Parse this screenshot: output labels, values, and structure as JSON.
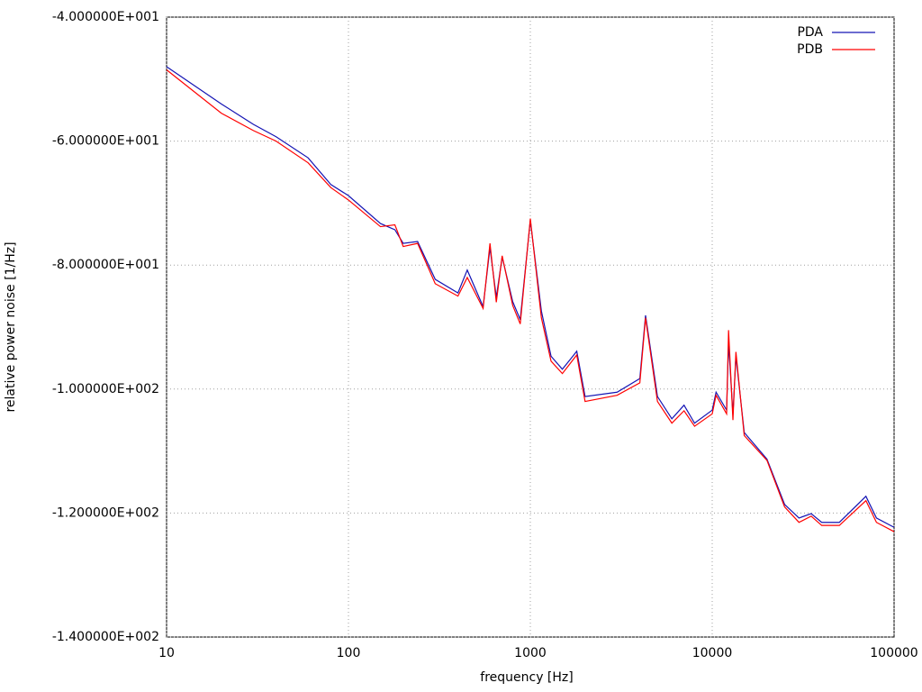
{
  "chart_data": {
    "type": "line",
    "xlabel": "frequency [Hz]",
    "ylabel": "relative power noise [1/Hz]",
    "xscale": "log",
    "grid": true,
    "legend": "upper right",
    "xlim": [
      10,
      100000
    ],
    "xticks": [
      10,
      100,
      1000,
      10000,
      100000
    ],
    "ylim": [
      -140,
      -40
    ],
    "yticks": [
      {
        "value": -140,
        "label": "-1.400000E+002"
      },
      {
        "value": -120,
        "label": "-1.200000E+002"
      },
      {
        "value": -100,
        "label": "-1.000000E+002"
      },
      {
        "value": -80,
        "label": "-8.000000E+001"
      },
      {
        "value": -60,
        "label": "-6.000000E+001"
      },
      {
        "value": -40,
        "label": "-4.000000E+001"
      }
    ],
    "x": [
      10,
      20,
      30,
      40,
      60,
      80,
      100,
      150,
      180,
      200,
      240,
      300,
      400,
      450,
      550,
      600,
      650,
      700,
      800,
      880,
      1000,
      1150,
      1300,
      1500,
      1800,
      2000,
      3000,
      4000,
      4300,
      5000,
      6000,
      7000,
      8000,
      10000,
      10500,
      12000,
      12300,
      13000,
      13500,
      15000,
      20000,
      25000,
      30000,
      35000,
      40000,
      50000,
      70000,
      80000,
      100000
    ],
    "series": [
      {
        "name": "PDA",
        "color": "#1414b4",
        "values": [
          -48,
          -54,
          -57.3,
          -59.3,
          -62.7,
          -67,
          -68.8,
          -73.3,
          -74.3,
          -76.5,
          -76.2,
          -82.3,
          -84.5,
          -80.8,
          -86.7,
          -77.2,
          -85.2,
          -78.7,
          -85.9,
          -88.8,
          -72.8,
          -87.4,
          -94.7,
          -96.8,
          -93.9,
          -101.2,
          -100.5,
          -98.3,
          -88.1,
          -101.2,
          -104.8,
          -102.6,
          -105.5,
          -103.4,
          -100.5,
          -103.4,
          -92.5,
          -104.1,
          -94.7,
          -107,
          -111.3,
          -118.6,
          -120.8,
          -120.1,
          -121.5,
          -121.5,
          -117.3,
          -120.8,
          -122.3
        ]
      },
      {
        "name": "PDB",
        "color": "#ff0000",
        "values": [
          -48.5,
          -55.5,
          -58.3,
          -60,
          -63.5,
          -67.5,
          -69.5,
          -73.8,
          -73.5,
          -77,
          -76.5,
          -83,
          -85,
          -82,
          -87,
          -76.5,
          -86,
          -78.5,
          -86.5,
          -89.5,
          -72.5,
          -88.5,
          -95.5,
          -97.5,
          -94.5,
          -102,
          -101,
          -99,
          -88.5,
          -102,
          -105.5,
          -103.5,
          -106,
          -104,
          -101,
          -104,
          -90.5,
          -105,
          -94,
          -107.5,
          -111.5,
          -119,
          -121.5,
          -120.5,
          -122,
          -122,
          -118,
          -121.5,
          -123
        ]
      }
    ]
  }
}
